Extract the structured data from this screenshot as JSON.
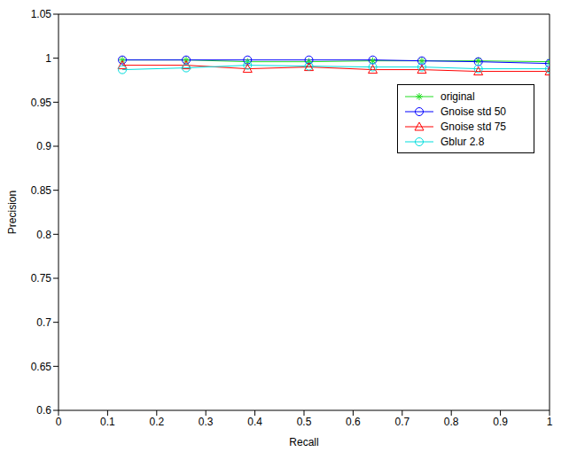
{
  "chart_data": {
    "type": "line",
    "x_label": "Recall",
    "y_label": "Precision",
    "x": [
      0.13,
      0.26,
      0.385,
      0.51,
      0.64,
      0.74,
      0.855,
      1.0
    ],
    "xlim": [
      0,
      1
    ],
    "xticks": [
      0,
      0.1,
      0.2,
      0.3,
      0.4,
      0.5,
      0.6,
      0.7,
      0.8,
      0.9,
      1
    ],
    "ylim": [
      0.6,
      1.05
    ],
    "yticks": [
      0.6,
      0.65,
      0.7,
      0.75,
      0.8,
      0.85,
      0.9,
      0.95,
      1,
      1.05
    ],
    "grid": false,
    "legend": "upper right",
    "series": [
      {
        "name": "original",
        "color": "#22dd22",
        "marker": "star",
        "values": [
          0.998,
          0.998,
          0.996,
          0.996,
          0.997,
          0.997,
          0.997,
          0.996
        ]
      },
      {
        "name": "Gnoise std 50",
        "color": "#0000ff",
        "marker": "circle",
        "values": [
          0.998,
          0.998,
          0.998,
          0.998,
          0.998,
          0.997,
          0.996,
          0.994
        ]
      },
      {
        "name": "Gnoise std 75",
        "color": "#ff0000",
        "marker": "triangle",
        "values": [
          0.992,
          0.992,
          0.988,
          0.99,
          0.987,
          0.987,
          0.985,
          0.985
        ]
      },
      {
        "name": "Gblur 2.8",
        "color": "#00dddd",
        "marker": "circle",
        "values": [
          0.987,
          0.989,
          0.992,
          0.991,
          0.99,
          0.99,
          0.988,
          0.988
        ]
      }
    ]
  }
}
